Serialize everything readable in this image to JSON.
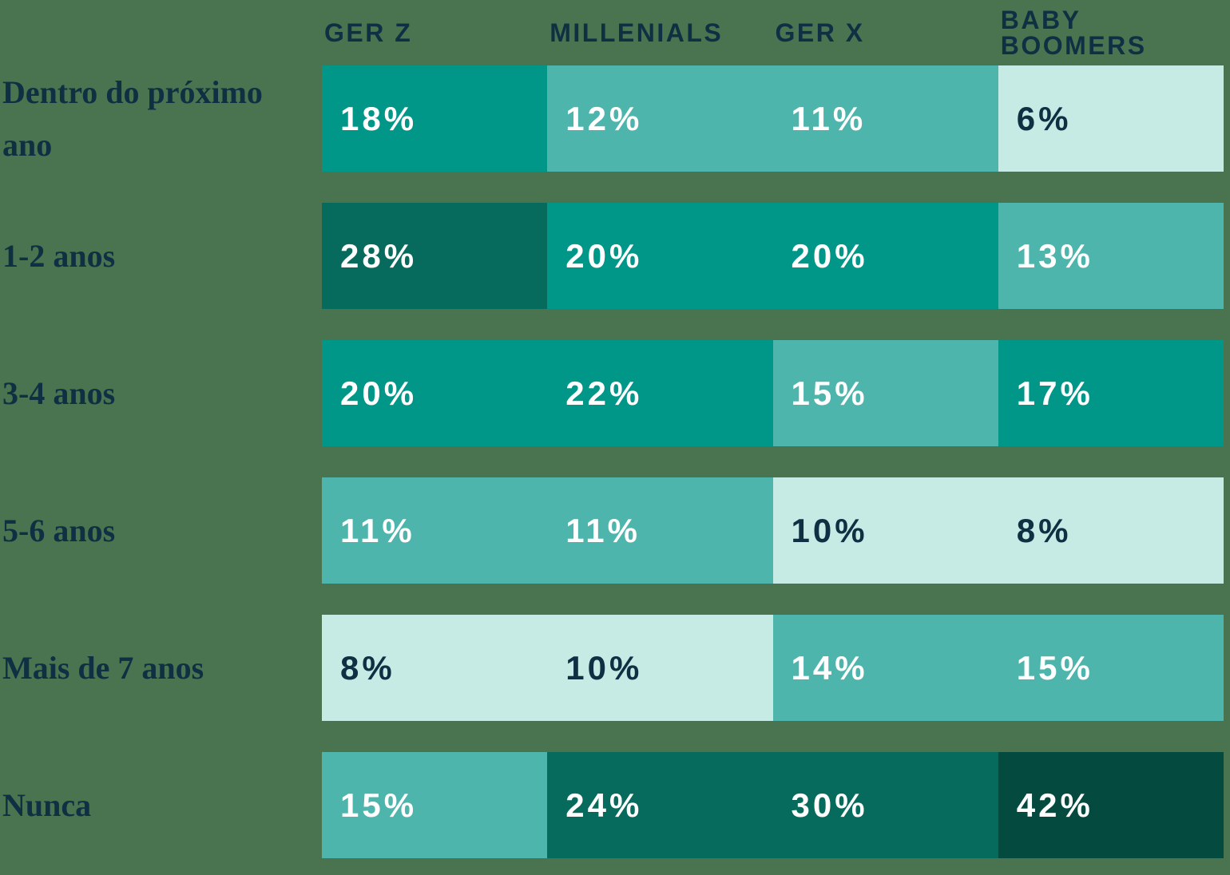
{
  "chart_data": {
    "type": "heatmap",
    "columns": [
      "GER Z",
      "MILLENIALS",
      "GER X",
      "BABY BOOMERS"
    ],
    "rows": [
      {
        "label": "Dentro do próximo ano",
        "values": [
          18,
          12,
          11,
          6
        ],
        "shades": [
          "teal",
          "medium",
          "medium",
          "light"
        ]
      },
      {
        "label": "1-2 anos",
        "values": [
          28,
          20,
          20,
          13
        ],
        "shades": [
          "darker",
          "teal",
          "teal",
          "medium"
        ]
      },
      {
        "label": "3-4 anos",
        "values": [
          20,
          22,
          15,
          17
        ],
        "shades": [
          "teal",
          "teal",
          "medium",
          "teal"
        ]
      },
      {
        "label": "5-6 anos",
        "values": [
          11,
          11,
          10,
          8
        ],
        "shades": [
          "medium",
          "medium",
          "light",
          "light"
        ]
      },
      {
        "label": "Mais de 7 anos",
        "values": [
          8,
          10,
          14,
          15
        ],
        "shades": [
          "light",
          "light",
          "medium",
          "medium"
        ]
      },
      {
        "label": "Nunca",
        "values": [
          15,
          24,
          30,
          42
        ],
        "shades": [
          "medium",
          "darker",
          "darker",
          "darkest"
        ]
      }
    ],
    "value_suffix": "%",
    "unit": "percent",
    "legend": "none",
    "grid": "off"
  },
  "palette": {
    "background": "#4A7350",
    "darkest": "#044A3E",
    "darker": "#066B5C",
    "teal": "#009789",
    "medium": "#4DB5AC",
    "light": "#C6EAE4",
    "text_navy": "#0F3043",
    "text_white": "#FFFFFF"
  }
}
